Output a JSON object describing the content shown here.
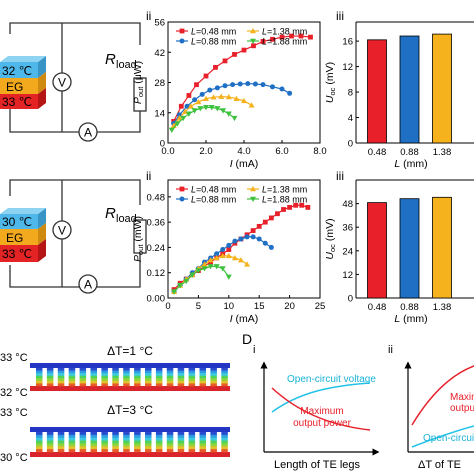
{
  "circuit_top": {
    "temp_top": "32 ℃",
    "layer_mid": "EG",
    "temp_bottom": "33 ℃",
    "voltmeter": "V",
    "ammeter": "A",
    "r_label": "R",
    "r_sub": "load"
  },
  "circuit_bottom": {
    "temp_top": "30 ℃",
    "layer_mid": "EG",
    "temp_bottom": "33 ℃",
    "voltmeter": "V",
    "ammeter": "A",
    "r_label": "R",
    "r_sub": "load"
  },
  "panel_labels": {
    "top_ii": "ii",
    "top_iii": "iii",
    "mid_ii": "ii",
    "mid_iii": "iii",
    "d": "D",
    "d_i": "i",
    "d_ii": "ii"
  },
  "series_colors": [
    "#e8202a",
    "#1f6fc5",
    "#f5b21d",
    "#3ec23e"
  ],
  "legend_names": [
    "L=0.48 mm",
    "L=0.88 mm",
    "L=1.38 mm",
    "L=1.88 mm"
  ],
  "chart_data": [
    {
      "type": "line",
      "panel": "ii",
      "xlabel": "I (mA)",
      "ylabel": "P_out (μW)",
      "xticks": [
        "0.0",
        "2.0",
        "4.0",
        "6.0",
        "8.0"
      ],
      "yticks": [
        "0",
        "14",
        "28",
        "42",
        "56"
      ],
      "xlim": [
        0,
        8
      ],
      "ylim": [
        0,
        56
      ],
      "series": [
        {
          "name": "L=0.48 mm",
          "x": [
            0.3,
            0.7,
            1.1,
            1.5,
            2.0,
            2.5,
            3.0,
            3.5,
            4.0,
            4.5,
            5.0,
            5.5,
            6.0,
            6.5,
            7.0,
            7.5
          ],
          "y": [
            10,
            17,
            22,
            27,
            31,
            35,
            38,
            41,
            43,
            45,
            47,
            48,
            49,
            49.5,
            49.5,
            49
          ]
        },
        {
          "name": "L=0.88 mm",
          "x": [
            0.3,
            0.6,
            1.0,
            1.4,
            1.8,
            2.2,
            2.6,
            3.0,
            3.4,
            3.8,
            4.2,
            4.6,
            5.0,
            5.5,
            6.0,
            6.4
          ],
          "y": [
            9,
            13,
            17,
            20,
            22.5,
            24.5,
            25.5,
            26.5,
            27,
            27.3,
            27.5,
            27.3,
            27,
            26,
            25,
            23
          ]
        },
        {
          "name": "L=1.38 mm",
          "x": [
            0.3,
            0.6,
            0.9,
            1.2,
            1.6,
            2.0,
            2.4,
            2.8,
            3.2,
            3.6,
            4.0,
            4.4
          ],
          "y": [
            8,
            11.5,
            14.5,
            17,
            19,
            20.5,
            21.2,
            21.5,
            21.3,
            20.5,
            19.5,
            17.5
          ]
        },
        {
          "name": "L=1.88 mm",
          "x": [
            0.2,
            0.5,
            0.8,
            1.1,
            1.4,
            1.7,
            2.0,
            2.3,
            2.6,
            2.9,
            3.2,
            3.5
          ],
          "y": [
            6,
            9,
            11.5,
            13.5,
            15,
            16,
            16.5,
            16.5,
            16,
            15,
            13.5,
            11.5
          ]
        }
      ]
    },
    {
      "type": "bar",
      "panel": "iii",
      "xlabel": "L (mm)",
      "ylabel": "U_oc (mV)",
      "categories": [
        "0.48",
        "0.88",
        "1.38"
      ],
      "values": [
        16.2,
        16.8,
        17.1
      ],
      "yticks": [
        "0",
        "4",
        "8",
        "12",
        "16"
      ],
      "ylim": [
        0,
        19
      ]
    },
    {
      "type": "line",
      "panel": "ii",
      "xlabel": "I (mA)",
      "ylabel": "P_out (mW)",
      "xticks": [
        "0",
        "5",
        "10",
        "15",
        "20",
        "25"
      ],
      "yticks": [
        "0.00",
        "0.12",
        "0.24",
        "0.36",
        "0.48"
      ],
      "xlim": [
        0,
        25
      ],
      "ylim": [
        0,
        0.56
      ],
      "series": [
        {
          "name": "L=0.48 mm",
          "x": [
            1,
            2,
            3,
            4,
            5,
            6,
            7,
            8,
            9,
            10,
            11,
            12,
            13,
            14,
            15,
            16,
            17,
            18,
            19,
            20,
            21,
            22,
            23
          ],
          "y": [
            0.04,
            0.07,
            0.09,
            0.11,
            0.13,
            0.15,
            0.17,
            0.19,
            0.21,
            0.23,
            0.26,
            0.28,
            0.3,
            0.32,
            0.34,
            0.36,
            0.38,
            0.4,
            0.42,
            0.43,
            0.44,
            0.44,
            0.43
          ]
        },
        {
          "name": "L=0.88 mm",
          "x": [
            1,
            2,
            3,
            4,
            5,
            6,
            7,
            8,
            9,
            10,
            11,
            12,
            13,
            14,
            15,
            16,
            17
          ],
          "y": [
            0.03,
            0.06,
            0.09,
            0.12,
            0.14,
            0.17,
            0.19,
            0.21,
            0.23,
            0.25,
            0.27,
            0.28,
            0.29,
            0.29,
            0.28,
            0.26,
            0.24
          ]
        },
        {
          "name": "L=1.38 mm",
          "x": [
            1,
            2,
            3,
            4,
            5,
            6,
            7,
            8,
            9,
            10,
            11,
            12,
            13
          ],
          "y": [
            0.03,
            0.06,
            0.09,
            0.11,
            0.14,
            0.16,
            0.18,
            0.19,
            0.2,
            0.2,
            0.19,
            0.18,
            0.16
          ]
        },
        {
          "name": "L=1.88 mm",
          "x": [
            1,
            2,
            3,
            4,
            5,
            6,
            7,
            8,
            9,
            10
          ],
          "y": [
            0.03,
            0.06,
            0.08,
            0.11,
            0.13,
            0.14,
            0.15,
            0.15,
            0.14,
            0.1
          ]
        }
      ]
    },
    {
      "type": "bar",
      "panel": "iii",
      "xlabel": "L (mm)",
      "ylabel": "U_oc (mV)",
      "categories": [
        "0.48",
        "0.88",
        "1.38"
      ],
      "values": [
        48.5,
        50.5,
        51.2
      ],
      "yticks": [
        "0",
        "12",
        "24",
        "36",
        "48"
      ],
      "ylim": [
        0,
        60
      ]
    }
  ],
  "bottom_section": {
    "top_hot": "33 °C",
    "top_cold": "32 °C",
    "bottom_hot": "33 °C",
    "bottom_cold": "30 °C",
    "delta1": "ΔT=1 °C",
    "delta2": "ΔT=3 °C"
  },
  "d_i": {
    "curve1": "Open-circuit voltage",
    "curve2a": "Maximum",
    "curve2b": "output power",
    "xlabel": "Length of TE legs"
  },
  "d_ii": {
    "curve1a": "Maximu",
    "curve1b": "outpu",
    "curve2": "Open-circui",
    "xlabel": "ΔT of TE"
  }
}
